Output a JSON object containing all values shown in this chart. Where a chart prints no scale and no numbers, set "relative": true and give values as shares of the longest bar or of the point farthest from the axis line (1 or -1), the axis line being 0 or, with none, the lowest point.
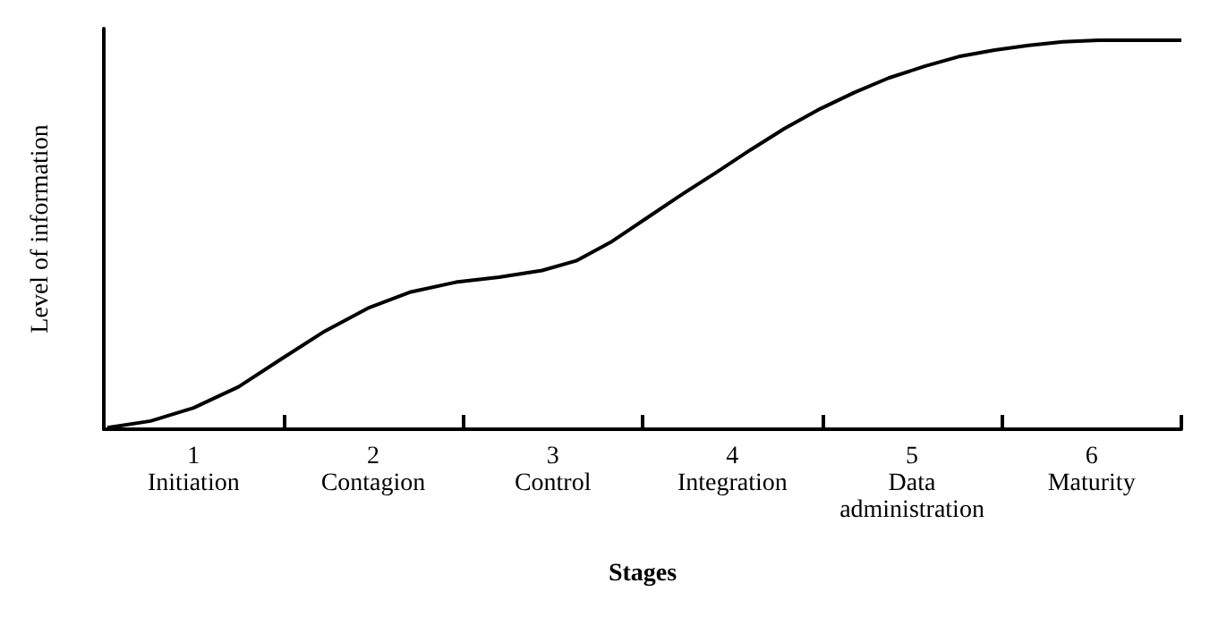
{
  "chart_data": {
    "type": "line",
    "relative": true,
    "xlabel": "Stages",
    "ylabel": "Level of information",
    "xlim": [
      0.5,
      6.5
    ],
    "xticks": [
      {
        "value": 1,
        "label": "1\nInitiation"
      },
      {
        "value": 1.5,
        "label": null
      },
      {
        "value": 2,
        "label": "2\nContagion"
      },
      {
        "value": 2.5,
        "label": null
      },
      {
        "value": 3,
        "label": "3\nControl"
      },
      {
        "value": 3.5,
        "label": null
      },
      {
        "value": 4,
        "label": "4\nIntegration"
      },
      {
        "value": 4.5,
        "label": null
      },
      {
        "value": 5,
        "label": "5\nData\nadministration"
      },
      {
        "value": 5.5,
        "label": null
      },
      {
        "value": 6,
        "label": "6\nMaturity"
      },
      {
        "value": 6.5,
        "label": null
      }
    ],
    "series": [
      {
        "color": "#000000",
        "x": [
          0.52,
          0.76,
          1.0,
          1.25,
          1.49,
          1.73,
          1.97,
          2.21,
          2.46,
          2.7,
          2.94,
          3.13,
          3.33,
          3.52,
          3.71,
          3.91,
          4.1,
          4.29,
          4.49,
          4.68,
          4.87,
          5.07,
          5.26,
          5.46,
          5.65,
          5.84,
          6.04,
          6.23,
          6.5
        ],
        "values": [
          0.004,
          0.021,
          0.055,
          0.109,
          0.181,
          0.252,
          0.311,
          0.353,
          0.378,
          0.391,
          0.408,
          0.433,
          0.483,
          0.542,
          0.601,
          0.66,
          0.718,
          0.773,
          0.824,
          0.866,
          0.903,
          0.933,
          0.958,
          0.975,
          0.987,
          0.996,
          1,
          1,
          1
        ]
      }
    ],
    "marker": "none",
    "line_style": "solid"
  }
}
